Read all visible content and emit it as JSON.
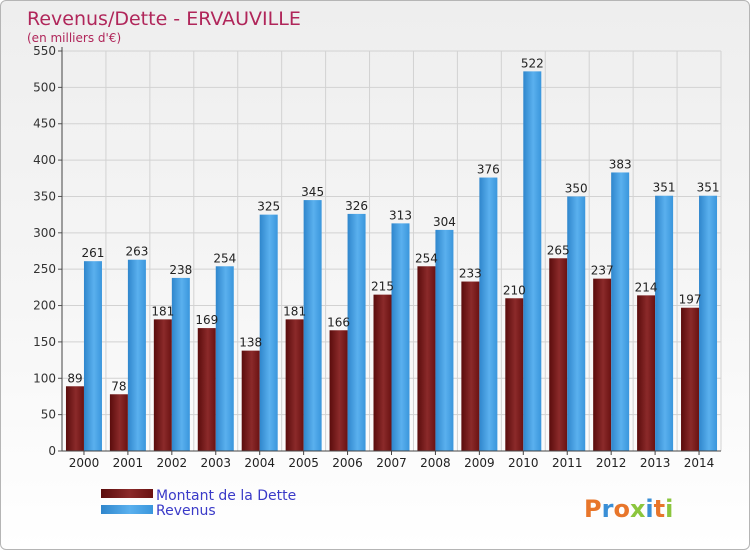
{
  "chart_data": {
    "type": "bar",
    "title": "Revenus/Dette - ERVAUVILLE",
    "subtitle": "(en milliers d'€)",
    "categories": [
      "2000",
      "2001",
      "2002",
      "2003",
      "2004",
      "2005",
      "2006",
      "2007",
      "2008",
      "2009",
      "2010",
      "2011",
      "2012",
      "2013",
      "2014"
    ],
    "series": [
      {
        "name": "Montant de la Dette",
        "color": "#7a1a1a",
        "values": [
          89,
          78,
          181,
          169,
          138,
          181,
          166,
          215,
          254,
          233,
          210,
          265,
          237,
          214,
          197
        ],
        "labels": [
          "89",
          "78",
          "181",
          "169",
          "138",
          "181",
          "166",
          "215",
          "254",
          "233",
          "210",
          "265",
          "237",
          "214",
          "197"
        ]
      },
      {
        "name": "Revenus",
        "color": "#3d9ae0",
        "values": [
          261,
          263,
          238,
          254,
          325,
          345,
          326,
          313,
          304,
          376,
          522,
          350,
          383,
          351,
          351
        ],
        "labels": [
          "261",
          "263",
          "238",
          "254",
          "325",
          "345",
          "326",
          "313",
          "304",
          "376",
          "522",
          "350",
          "383",
          "351",
          "351"
        ]
      }
    ],
    "yticks": [
      0,
      50,
      100,
      150,
      200,
      250,
      300,
      350,
      400,
      450,
      500,
      550
    ],
    "ylim": [
      0,
      550
    ],
    "grid": true,
    "legend": "bottom-left"
  },
  "logo": {
    "text": "Proxiti"
  }
}
